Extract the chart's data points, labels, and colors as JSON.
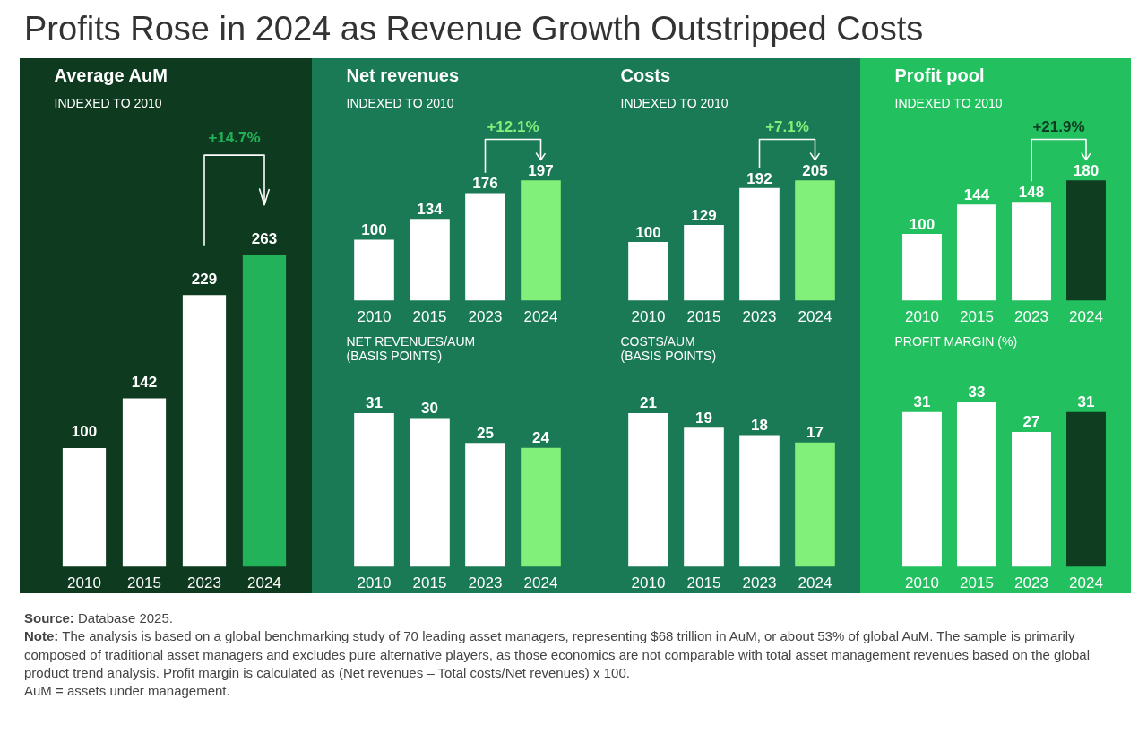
{
  "chart_data": [
    {
      "type": "other",
      "title": "Profits Rose in 2024 as Revenue Growth Outstripped Costs",
      "annotations": [
        "Source: Database 2025.",
        "Note: The analysis is based on a global benchmarking study of 70 leading asset managers, representing $68 trillion in AuM, or about 53% of global AuM. The sample is primarily composed of traditional asset managers and excludes pure alternative players, as those economics are not comparable with total asset management revenues based on the global product trend analysis. Profit margin is calculated as (Net revenues – Total costs/Net revenues) x 100.",
        "AuM = assets under management."
      ]
    },
    {
      "type": "bar",
      "title": "Average AuM",
      "subtitle": "INDEXED TO 2010",
      "categories": [
        "2010",
        "2015",
        "2023",
        "2024"
      ],
      "values": [
        100,
        142,
        229,
        263
      ],
      "colors": [
        "#ffffff",
        "#ffffff",
        "#ffffff",
        "#22b25a"
      ],
      "data_labels": true,
      "tick_labels": "x",
      "grid": false,
      "annotations": [
        "+14.7%"
      ]
    },
    {
      "type": "bar",
      "title": "Net revenues",
      "subtitle": "INDEXED TO 2010",
      "categories": [
        "2010",
        "2015",
        "2023",
        "2024"
      ],
      "values": [
        100,
        134,
        176,
        197
      ],
      "colors": [
        "#ffffff",
        "#ffffff",
        "#ffffff",
        "#80f07a"
      ],
      "data_labels": true,
      "tick_labels": "x",
      "grid": false,
      "annotations": [
        "+12.1%"
      ]
    },
    {
      "type": "bar",
      "title": "Costs",
      "subtitle": "INDEXED TO 2010",
      "categories": [
        "2010",
        "2015",
        "2023",
        "2024"
      ],
      "values": [
        100,
        129,
        192,
        205
      ],
      "colors": [
        "#ffffff",
        "#ffffff",
        "#ffffff",
        "#80f07a"
      ],
      "data_labels": true,
      "tick_labels": "x",
      "grid": false,
      "annotations": [
        "+7.1%"
      ]
    },
    {
      "type": "bar",
      "title": "NET REVENUES/AUM\n(BASIS POINTS)",
      "categories": [
        "2010",
        "2015",
        "2023",
        "2024"
      ],
      "values": [
        31,
        30,
        25,
        24
      ],
      "colors": [
        "#ffffff",
        "#ffffff",
        "#ffffff",
        "#80f07a"
      ],
      "data_labels": true,
      "tick_labels": "x",
      "grid": false
    },
    {
      "type": "bar",
      "title": "COSTS/AUM\n(BASIS POINTS)",
      "categories": [
        "2010",
        "2015",
        "2023",
        "2024"
      ],
      "values": [
        21,
        19,
        18,
        17
      ],
      "colors": [
        "#ffffff",
        "#ffffff",
        "#ffffff",
        "#80f07a"
      ],
      "data_labels": true,
      "tick_labels": "x",
      "grid": false
    },
    {
      "type": "bar",
      "title": "Profit pool",
      "subtitle": "INDEXED TO 2010",
      "categories": [
        "2010",
        "2015",
        "2023",
        "2024"
      ],
      "values": [
        100,
        144,
        148,
        180
      ],
      "colors": [
        "#ffffff",
        "#ffffff",
        "#ffffff",
        "#0f3d20"
      ],
      "data_labels": true,
      "tick_labels": "x",
      "grid": false,
      "annotations": [
        "+21.9%"
      ]
    },
    {
      "type": "bar",
      "title": "PROFIT MARGIN (%)",
      "categories": [
        "2010",
        "2015",
        "2023",
        "2024"
      ],
      "values": [
        31,
        33,
        27,
        31
      ],
      "colors": [
        "#ffffff",
        "#ffffff",
        "#ffffff",
        "#0f3d20"
      ],
      "data_labels": true,
      "tick_labels": "x",
      "grid": false
    }
  ]
}
